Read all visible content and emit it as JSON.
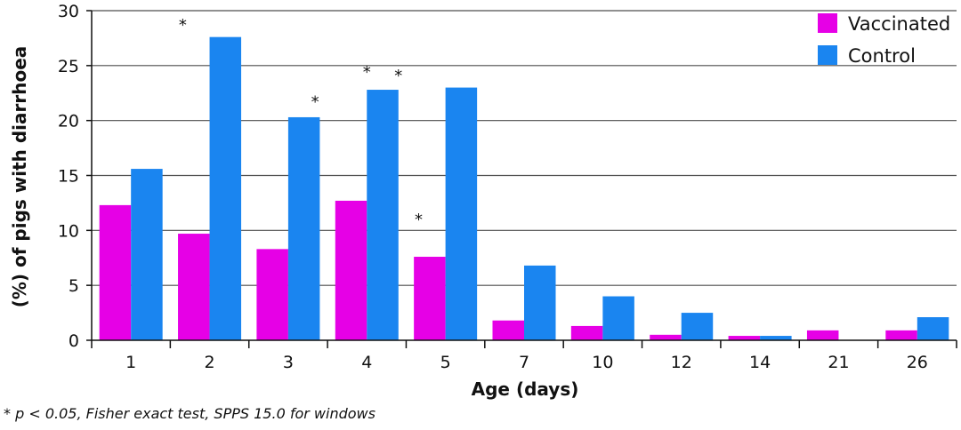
{
  "chart_data": {
    "type": "bar",
    "categories": [
      "1",
      "2",
      "3",
      "4",
      "5",
      "7",
      "10",
      "12",
      "14",
      "21",
      "26"
    ],
    "series": [
      {
        "name": "Vaccinated",
        "color": "#e600e6",
        "values": [
          12.3,
          9.7,
          8.3,
          12.7,
          7.6,
          1.8,
          1.3,
          0.5,
          0.4,
          0.9,
          0.9
        ]
      },
      {
        "name": "Control",
        "color": "#1a85f0",
        "values": [
          15.6,
          27.6,
          20.3,
          22.8,
          23.0,
          6.8,
          4.0,
          2.5,
          0.4,
          0.0,
          2.1
        ]
      }
    ],
    "xlabel": "Age (days)",
    "ylabel": "(%) of pigs with diarrhoea",
    "ylim": [
      0,
      30
    ],
    "yticks": [
      0,
      5,
      10,
      15,
      20,
      25,
      30
    ],
    "grid": "horizontal",
    "legend_position": "top-right",
    "annotations": [
      {
        "text": "*",
        "category": "2",
        "level": 29.2
      },
      {
        "text": "*",
        "category": "3",
        "level": 22.2
      },
      {
        "text": "*",
        "category": "4",
        "level": 24.9
      },
      {
        "text": "*",
        "category": "4",
        "level": 24.6
      },
      {
        "text": "*",
        "category": "5",
        "level": 11.5
      }
    ]
  },
  "footnote": "* p < 0.05, Fisher exact test, SPPS 15.0 for windows"
}
